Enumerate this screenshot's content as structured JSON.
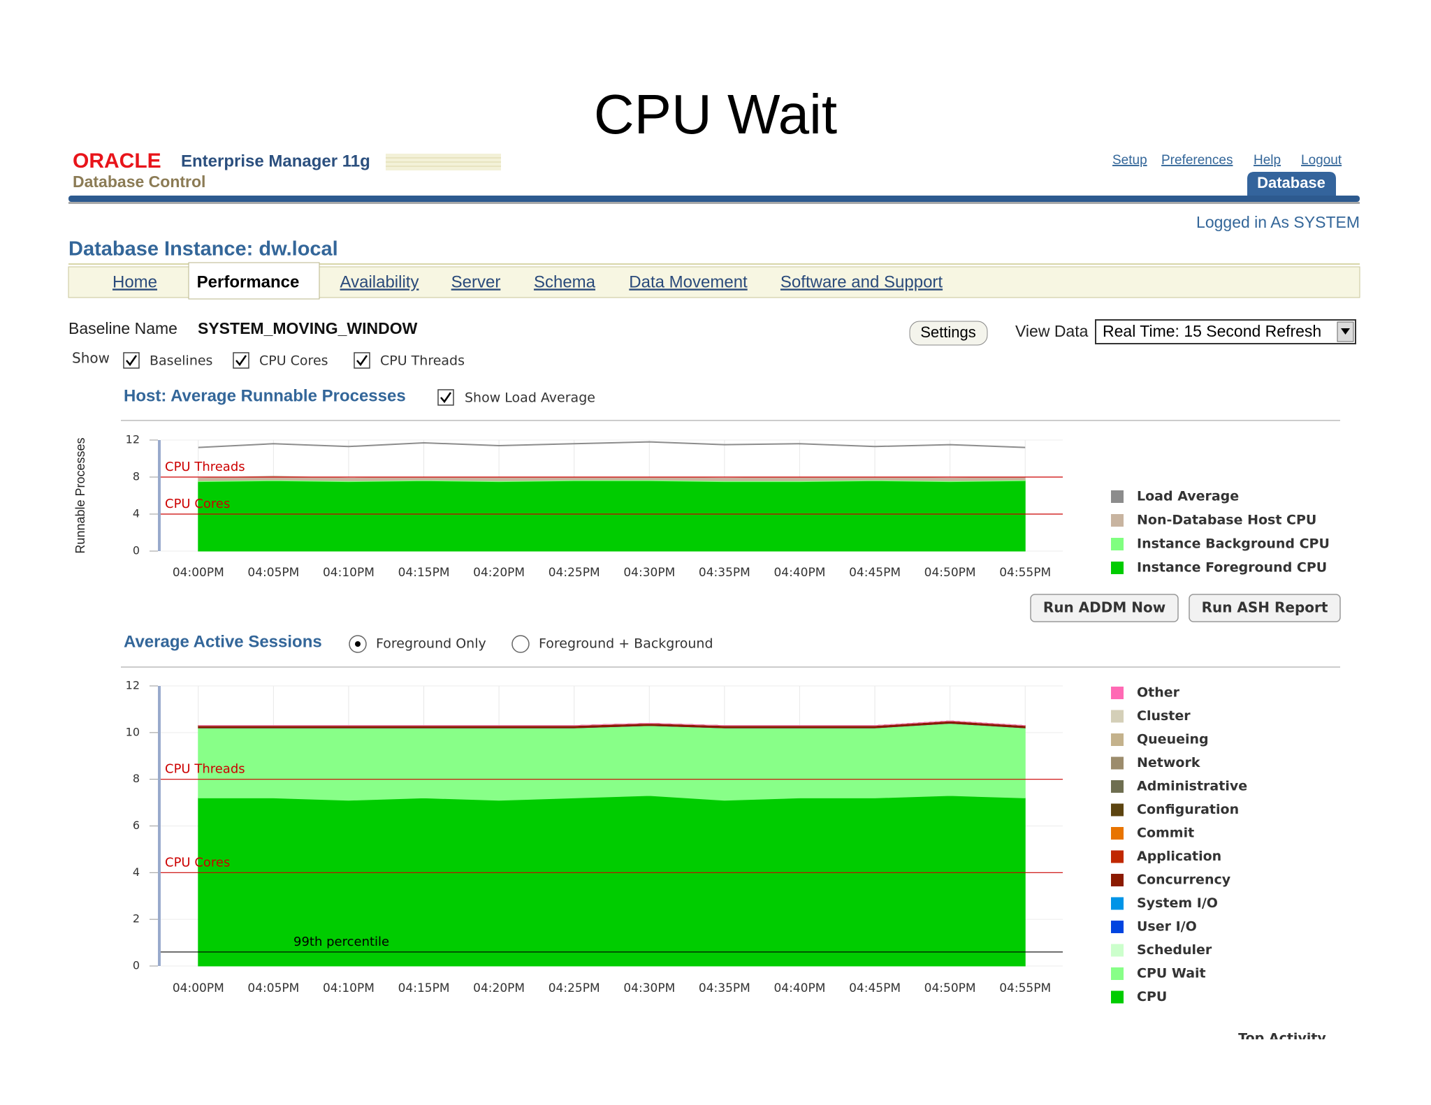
{
  "slide_title": "CPU Wait",
  "header": {
    "brand": "ORACLE",
    "product": "Enterprise Manager 11g",
    "subtitle": "Database Control",
    "links": [
      "Setup",
      "Preferences",
      "Help",
      "Logout"
    ],
    "tab": "Database",
    "login": "Logged in As SYSTEM"
  },
  "page": {
    "title": "Database Instance: dw.local",
    "tabs": [
      "Home",
      "Performance",
      "Availability",
      "Server",
      "Schema",
      "Data Movement",
      "Software and Support"
    ],
    "active_tab": 1,
    "baseline_label": "Baseline Name",
    "baseline": "SYSTEM_MOVING_WINDOW",
    "settings_button": "Settings",
    "view_data_label": "View Data",
    "view_data": "Real Time: 15 Second Refresh",
    "show_label": "Show",
    "show_options": [
      {
        "label": "Baselines",
        "checked": true
      },
      {
        "label": "CPU Cores",
        "checked": true
      },
      {
        "label": "CPU Threads",
        "checked": true
      }
    ]
  },
  "host_section": {
    "title": "Host: Average Runnable Processes",
    "option": {
      "label": "Show Load Average",
      "checked": true
    }
  },
  "buttons": [
    "Run ADDM Now",
    "Run ASH Report"
  ],
  "sessions_section": {
    "title": "Average Active Sessions",
    "options": [
      {
        "label": "Foreground Only",
        "selected": true
      },
      {
        "label": "Foreground + Background",
        "selected": false
      }
    ]
  },
  "footer_label": "Top Activity",
  "chart_data": [
    {
      "type": "area",
      "stacked": true,
      "y_label": "Runnable Processes",
      "categories": [
        "04:00PM",
        "04:05PM",
        "04:10PM",
        "04:15PM",
        "04:20PM",
        "04:25PM",
        "04:30PM",
        "04:35PM",
        "04:40PM",
        "04:45PM",
        "04:50PM",
        "04:55PM"
      ],
      "ylim": [
        0,
        12
      ],
      "yticks": [
        0,
        4,
        8,
        12
      ],
      "grid": true,
      "series": [
        {
          "name": "Load Average",
          "color": "#8c8c8c",
          "kind": "line",
          "values": [
            11.2,
            11.6,
            11.3,
            11.7,
            11.4,
            11.6,
            11.8,
            11.5,
            11.6,
            11.3,
            11.5,
            11.2
          ]
        },
        {
          "name": "Non-Database Host CPU",
          "color": "#c8b4a0",
          "values": [
            0.3,
            0.4,
            0.3,
            0.3,
            0.4,
            0.3,
            0.3,
            0.3,
            0.4,
            0.3,
            0.3,
            0.3
          ]
        },
        {
          "name": "Instance Background CPU",
          "color": "#80ff80",
          "values": [
            0.1,
            0.1,
            0.1,
            0.1,
            0.1,
            0.1,
            0.1,
            0.1,
            0.1,
            0.1,
            0.1,
            0.1
          ]
        },
        {
          "name": "Instance Foreground CPU",
          "color": "#00cc00",
          "values": [
            7.5,
            7.6,
            7.5,
            7.6,
            7.5,
            7.6,
            7.6,
            7.5,
            7.5,
            7.6,
            7.5,
            7.6
          ]
        }
      ],
      "reference_lines": [
        {
          "label": "CPU Threads",
          "value": 8,
          "color": "#cc0000"
        },
        {
          "label": "CPU Cores",
          "value": 4,
          "color": "#cc0000"
        }
      ]
    },
    {
      "type": "area",
      "stacked": true,
      "categories": [
        "04:00PM",
        "04:05PM",
        "04:10PM",
        "04:15PM",
        "04:20PM",
        "04:25PM",
        "04:30PM",
        "04:35PM",
        "04:40PM",
        "04:45PM",
        "04:50PM",
        "04:55PM"
      ],
      "ylim": [
        0,
        12
      ],
      "yticks": [
        0,
        2,
        4,
        6,
        8,
        10,
        12
      ],
      "grid": true,
      "series": [
        {
          "name": "Other",
          "color": "#ff69b4",
          "values": [
            0,
            0,
            0,
            0,
            0,
            0,
            0,
            0,
            0,
            0,
            0,
            0
          ]
        },
        {
          "name": "Cluster",
          "color": "#d4cfb8",
          "values": [
            0,
            0,
            0,
            0,
            0,
            0,
            0,
            0,
            0,
            0,
            0,
            0
          ]
        },
        {
          "name": "Queueing",
          "color": "#c4b28c",
          "values": [
            0,
            0,
            0,
            0,
            0,
            0,
            0,
            0,
            0,
            0,
            0,
            0
          ]
        },
        {
          "name": "Network",
          "color": "#9c8c6c",
          "values": [
            0,
            0,
            0,
            0,
            0,
            0,
            0,
            0,
            0,
            0,
            0,
            0
          ]
        },
        {
          "name": "Administrative",
          "color": "#6e6e50",
          "values": [
            0,
            0,
            0,
            0,
            0,
            0,
            0,
            0,
            0,
            0,
            0,
            0
          ]
        },
        {
          "name": "Configuration",
          "color": "#5c4410",
          "values": [
            0,
            0,
            0,
            0,
            0,
            0,
            0,
            0,
            0,
            0,
            0,
            0
          ]
        },
        {
          "name": "Commit",
          "color": "#e87400",
          "values": [
            0,
            0,
            0,
            0,
            0,
            0,
            0,
            0,
            0,
            0,
            0,
            0
          ]
        },
        {
          "name": "Application",
          "color": "#c02800",
          "values": [
            0,
            0,
            0,
            0,
            0,
            0,
            0,
            0,
            0,
            0,
            0,
            0
          ]
        },
        {
          "name": "Concurrency",
          "color": "#8b1a00",
          "values": [
            0.1,
            0.1,
            0.1,
            0.1,
            0.1,
            0.1,
            0.1,
            0.1,
            0.1,
            0.1,
            0.1,
            0.1
          ]
        },
        {
          "name": "System I/O",
          "color": "#0094e7",
          "values": [
            0,
            0,
            0,
            0,
            0,
            0,
            0,
            0,
            0,
            0,
            0,
            0
          ]
        },
        {
          "name": "User I/O",
          "color": "#0044e0",
          "values": [
            0,
            0,
            0,
            0,
            0,
            0,
            0,
            0,
            0,
            0,
            0,
            0
          ]
        },
        {
          "name": "Scheduler",
          "color": "#ccffcc",
          "values": [
            0,
            0,
            0,
            0,
            0,
            0,
            0,
            0,
            0,
            0,
            0,
            0
          ]
        },
        {
          "name": "CPU Wait",
          "color": "#88ff88",
          "values": [
            3.0,
            3.0,
            3.1,
            3.0,
            3.1,
            3.0,
            3.0,
            3.1,
            3.0,
            3.0,
            3.1,
            3.0
          ]
        },
        {
          "name": "CPU",
          "color": "#00cc00",
          "values": [
            7.2,
            7.2,
            7.1,
            7.2,
            7.1,
            7.2,
            7.3,
            7.1,
            7.2,
            7.2,
            7.3,
            7.2
          ]
        }
      ],
      "reference_lines": [
        {
          "label": "CPU Threads",
          "value": 8,
          "color": "#cc0000"
        },
        {
          "label": "CPU Cores",
          "value": 4,
          "color": "#cc0000"
        },
        {
          "label": "99th percentile",
          "value": 0.6,
          "color": "#000000"
        }
      ]
    }
  ]
}
